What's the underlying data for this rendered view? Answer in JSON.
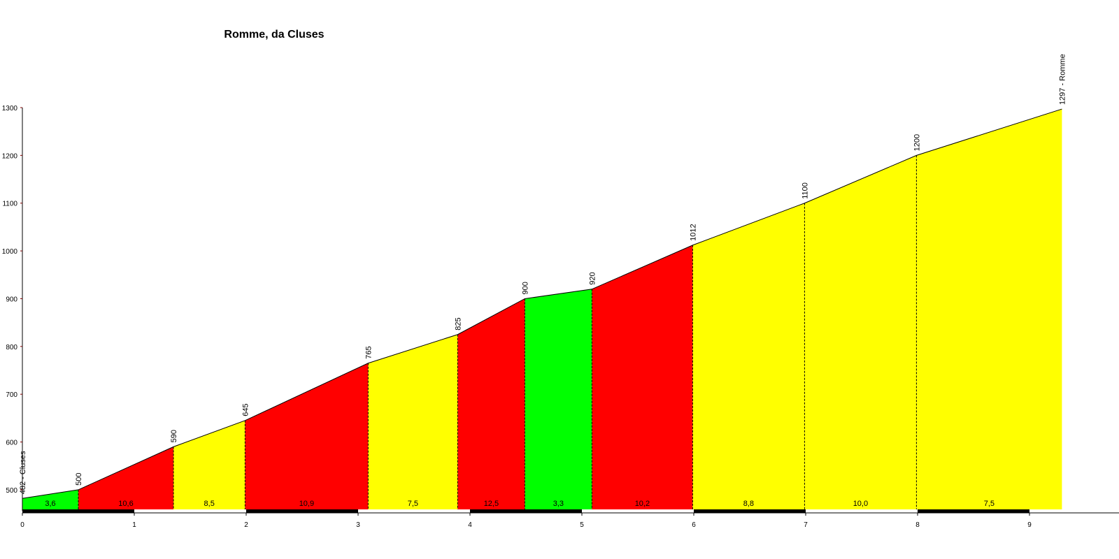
{
  "chart_data": {
    "type": "profile",
    "title": "Romme, da Cluses",
    "x": [
      0,
      0.5,
      1.35,
      1.99,
      3.09,
      3.89,
      4.49,
      5.09,
      5.99,
      6.99,
      7.99,
      9.29
    ],
    "values": [
      482,
      500,
      590,
      645,
      765,
      825,
      900,
      920,
      1012,
      1100,
      1200,
      1297
    ],
    "value_labels": [
      "482 - Cluses",
      "500",
      "590",
      "645",
      "765",
      "825",
      "900",
      "920",
      "1012",
      "1100",
      "1200",
      "1297 - Romme"
    ],
    "segments": {
      "values": [
        3.6,
        10.6,
        8.5,
        10.9,
        7.5,
        12.5,
        3.3,
        10.2,
        8.8,
        10.0,
        7.5
      ],
      "value_labels": [
        "3,6",
        "10,6",
        "8,5",
        "10,9",
        "7,5",
        "12,5",
        "3,3",
        "10,2",
        "8,8",
        "10,0",
        "7,5"
      ],
      "colors": [
        "#00ff00",
        "#ff0000",
        "#ffff00",
        "#ff0000",
        "#ffff00",
        "#ff0000",
        "#00ff00",
        "#ff0000",
        "#ffff00",
        "#ffff00",
        "#ffff00"
      ]
    },
    "xlim": [
      0,
      9.8
    ],
    "ylim": [
      456,
      1300
    ],
    "xticks": [
      0,
      1,
      2,
      3,
      4,
      5,
      6,
      7,
      8,
      9
    ],
    "yticks": [
      500,
      600,
      700,
      800,
      900,
      1000,
      1100,
      1200,
      1300
    ]
  }
}
